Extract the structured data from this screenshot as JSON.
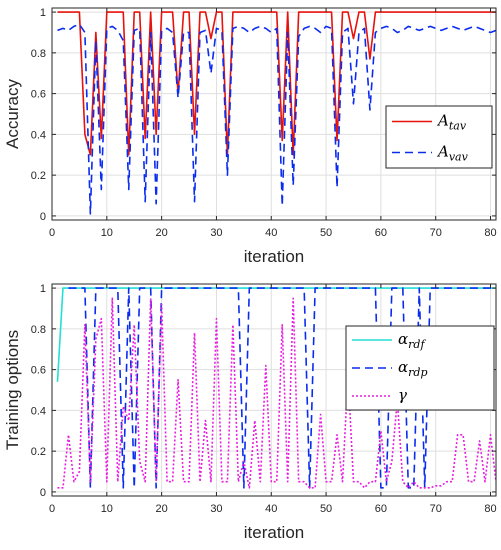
{
  "chart_data": [
    {
      "type": "line",
      "xlabel": "iteration",
      "ylabel": "Accuracy",
      "xlim": [
        0,
        81
      ],
      "ylim": [
        -0.02,
        1.02
      ],
      "xticks": [
        "0",
        "10",
        "20",
        "30",
        "40",
        "50",
        "60",
        "70",
        "80"
      ],
      "yticks": [
        "0",
        "0.2",
        "0.4",
        "0.6",
        "0.8",
        "1"
      ],
      "grid": true,
      "legend_position": "right",
      "x_start": 1,
      "series": [
        {
          "name": "A",
          "sub": "tav",
          "color": "#e8120c",
          "dash": "solid",
          "values": [
            1,
            1,
            1,
            1,
            1,
            0.4,
            0.3,
            0.9,
            0.38,
            1,
            1,
            1,
            1,
            0.3,
            1,
            1,
            0.38,
            1,
            0.4,
            1,
            1,
            1,
            0.6,
            1,
            1,
            0.4,
            1,
            1,
            0.87,
            1,
            1,
            0.3,
            1,
            1,
            1,
            1,
            1,
            1,
            1,
            1,
            1,
            0.37,
            1,
            0.3,
            1,
            1,
            1,
            1,
            1,
            1,
            1,
            0.37,
            1,
            1,
            0.87,
            1,
            1,
            0.77,
            1,
            1,
            1,
            1,
            1,
            1,
            1,
            1,
            1,
            1,
            1,
            1,
            1,
            1,
            1,
            1,
            1,
            1,
            1,
            1,
            1,
            1,
            1
          ]
        },
        {
          "name": "A",
          "sub": "vav",
          "color": "#0a2cf0",
          "dash": "8,5",
          "values": [
            0.91,
            0.92,
            0.91,
            0.93,
            0.94,
            0.9,
            0.01,
            0.86,
            0.13,
            0.92,
            0.93,
            0.91,
            0.86,
            0.13,
            0.91,
            0.92,
            0.07,
            0.9,
            0.06,
            0.91,
            0.92,
            0.9,
            0.58,
            0.9,
            0.9,
            0.07,
            0.9,
            0.91,
            0.7,
            0.92,
            0.91,
            0.2,
            0.92,
            0.93,
            0.92,
            0.9,
            0.92,
            0.93,
            0.92,
            0.9,
            0.92,
            0.05,
            0.9,
            0.15,
            0.88,
            0.92,
            0.93,
            0.92,
            0.9,
            0.93,
            0.92,
            0.14,
            0.9,
            0.92,
            0.55,
            0.9,
            0.92,
            0.52,
            0.9,
            0.92,
            0.93,
            0.92,
            0.9,
            0.91,
            0.93,
            0.92,
            0.91,
            0.92,
            0.93,
            0.92,
            0.91,
            0.92,
            0.93,
            0.92,
            0.91,
            0.92,
            0.93,
            0.92,
            0.91,
            0.9,
            0.91
          ]
        }
      ]
    },
    {
      "type": "line",
      "xlabel": "iteration",
      "ylabel": "Training options",
      "xlim": [
        0,
        81
      ],
      "ylim": [
        -0.02,
        1.02
      ],
      "xticks": [
        "0",
        "10",
        "20",
        "30",
        "40",
        "50",
        "60",
        "70",
        "80"
      ],
      "yticks": [
        "0",
        "0.2",
        "0.4",
        "0.6",
        "0.8",
        "1"
      ],
      "grid": true,
      "legend_position": "right",
      "x_start": 1,
      "series": [
        {
          "name": "α",
          "sub": "rdf",
          "color": "#22e0d4",
          "dash": "solid",
          "values": [
            0.54,
            1,
            1,
            1,
            1,
            1,
            1,
            1,
            1,
            1,
            1,
            1,
            1,
            1,
            1,
            1,
            1,
            1,
            1,
            1,
            1,
            1,
            1,
            1,
            1,
            1,
            1,
            1,
            1,
            1,
            1,
            1,
            1,
            1,
            1,
            1,
            1,
            1,
            1,
            1,
            1,
            1,
            1,
            1,
            1,
            1,
            1,
            1,
            1,
            1,
            1,
            1,
            1,
            1,
            1,
            1,
            1,
            1,
            1,
            1,
            1,
            1,
            1,
            1,
            1,
            1,
            1,
            1,
            1,
            1,
            1,
            1,
            1,
            1,
            1,
            1,
            1,
            1,
            1,
            1,
            1
          ]
        },
        {
          "name": "α",
          "sub": "rdp",
          "color": "#0a2cf0",
          "dash": "8,5",
          "values": [
            null,
            null,
            1,
            1,
            1,
            1,
            0.02,
            1,
            1,
            1,
            1,
            1,
            0.02,
            1,
            0.02,
            1,
            1,
            1,
            0.02,
            1,
            1,
            1,
            1,
            1,
            1,
            1,
            1,
            1,
            1,
            1,
            1,
            1,
            1,
            1,
            0.02,
            1,
            1,
            1,
            1,
            1,
            1,
            1,
            1,
            1,
            1,
            1,
            0.02,
            1,
            1,
            1,
            1,
            1,
            1,
            1,
            1,
            1,
            1,
            1,
            1,
            0.02,
            0.02,
            1,
            1,
            1,
            0.02,
            0.02,
            1,
            0.02,
            1,
            1,
            1,
            1,
            1,
            1,
            1,
            1,
            1,
            1,
            1,
            1,
            1
          ]
        },
        {
          "name": "γ",
          "sub": "",
          "color": "#e81ee0",
          "dash": "2,2",
          "values": [
            0.02,
            0.02,
            0.28,
            0.05,
            0.1,
            0.82,
            0.05,
            0.75,
            0.85,
            0.05,
            0.95,
            0.05,
            0.42,
            0.35,
            0.82,
            0.15,
            0.05,
            0.95,
            0.05,
            0.92,
            0.05,
            0.05,
            0.55,
            0.05,
            0.05,
            0.78,
            0.05,
            0.35,
            0.05,
            0.85,
            0.05,
            0.05,
            0.82,
            0.05,
            0.15,
            0.02,
            0.35,
            0.05,
            0.62,
            0.05,
            0.05,
            0.82,
            0.05,
            0.95,
            0.05,
            0.05,
            0.02,
            0.02,
            0.38,
            0.05,
            0.05,
            0.28,
            0.05,
            0.58,
            0.05,
            0.05,
            0.02,
            0.05,
            0.05,
            0.3,
            0.05,
            0.15,
            0.45,
            0.05,
            0.02,
            0.05,
            0.02,
            0.02,
            0.02,
            0.03,
            0.03,
            0.05,
            0.05,
            0.28,
            0.28,
            0.05,
            0.05,
            0.25,
            0.05,
            0.28,
            0.05
          ]
        }
      ]
    }
  ]
}
